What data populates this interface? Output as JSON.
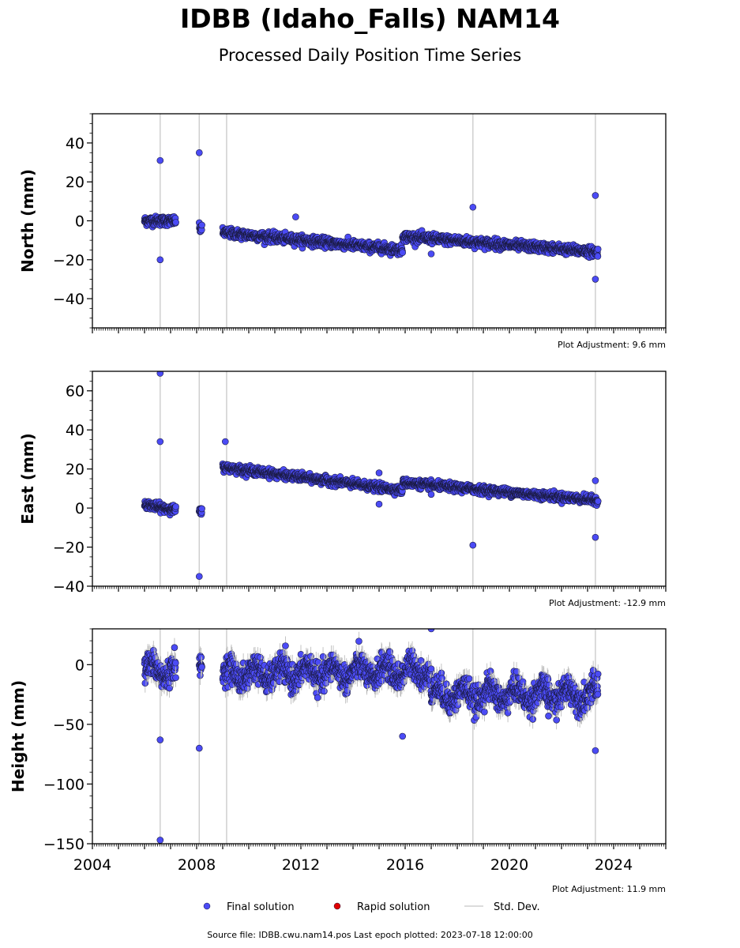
{
  "title": "IDBB (Idaho_Falls) NAM14",
  "subtitle": "Processed Daily Position Time Series",
  "footer": "Source file: IDBB.cwu.nam14.pos  Last epoch plotted: 2023-07-18 12:00:00",
  "legend": [
    {
      "label": "Final solution",
      "color": "#4b4bf5",
      "kind": "dot"
    },
    {
      "label": "Rapid solution",
      "color": "#e00000",
      "kind": "dot"
    },
    {
      "label": "Std. Dev.",
      "color": "#d0d0d0",
      "kind": "line"
    }
  ],
  "chart_data": {
    "type": "scatter",
    "xlim": [
      2004.0,
      2026.0
    ],
    "x_ticks": [
      "2004",
      "2008",
      "2012",
      "2016",
      "2020",
      "2024"
    ],
    "panels": [
      {
        "ylabel": "North (mm)",
        "ylim": [
          -55,
          55
        ],
        "y_ticks": [
          "40",
          "20",
          "0",
          "−20",
          "−40"
        ],
        "adjustment": "Plot Adjustment: 9.6 mm",
        "series": [
          {
            "x": [
              2006.0,
              2007.2
            ],
            "y": [
              0,
              0
            ]
          },
          {
            "x": [
              2008.1,
              2008.2
            ],
            "y": [
              -4,
              -4
            ]
          },
          {
            "x": [
              2009.0,
              2015.9
            ],
            "y": [
              -6,
              -15
            ]
          },
          {
            "x": [
              2015.9,
              2023.4
            ],
            "y": [
              -8,
              -16
            ]
          }
        ],
        "outliers": [
          {
            "x": 2006.6,
            "y": 31
          },
          {
            "x": 2006.6,
            "y": -20
          },
          {
            "x": 2008.1,
            "y": 35
          },
          {
            "x": 2011.8,
            "y": 2
          },
          {
            "x": 2017.0,
            "y": -17
          },
          {
            "x": 2018.6,
            "y": 7
          },
          {
            "x": 2023.3,
            "y": 13
          },
          {
            "x": 2023.3,
            "y": -30
          }
        ]
      },
      {
        "ylabel": "East (mm)",
        "ylim": [
          -40,
          70
        ],
        "y_ticks": [
          "60",
          "40",
          "20",
          "0",
          "−20",
          "−40"
        ],
        "adjustment": "Plot Adjustment: -12.9 mm",
        "series": [
          {
            "x": [
              2006.0,
              2007.2
            ],
            "y": [
              2,
              -1
            ]
          },
          {
            "x": [
              2008.1,
              2008.2
            ],
            "y": [
              -2,
              -2
            ]
          },
          {
            "x": [
              2009.0,
              2015.9
            ],
            "y": [
              21,
              9
            ]
          },
          {
            "x": [
              2015.9,
              2023.4
            ],
            "y": [
              13,
              4
            ]
          }
        ],
        "outliers": [
          {
            "x": 2006.6,
            "y": 69
          },
          {
            "x": 2006.6,
            "y": 34
          },
          {
            "x": 2008.1,
            "y": -35
          },
          {
            "x": 2009.1,
            "y": 34
          },
          {
            "x": 2015.0,
            "y": 18
          },
          {
            "x": 2015.0,
            "y": 2
          },
          {
            "x": 2017.0,
            "y": 7
          },
          {
            "x": 2018.6,
            "y": -19
          },
          {
            "x": 2023.3,
            "y": 14
          },
          {
            "x": 2023.3,
            "y": -15
          }
        ]
      },
      {
        "ylabel": "Height (mm)",
        "ylim": [
          -150,
          30
        ],
        "y_ticks": [
          "0",
          "−50",
          "−100",
          "−150"
        ],
        "adjustment": "Plot Adjustment: 11.9 mm",
        "series": [
          {
            "x": [
              2006.0,
              2007.2
            ],
            "y": [
              -5,
              -5
            ]
          },
          {
            "x": [
              2008.1,
              2008.2
            ],
            "y": [
              -8,
              -8
            ]
          },
          {
            "x": [
              2009.0,
              2017.0
            ],
            "y": [
              -8,
              -5
            ]
          },
          {
            "x": [
              2017.0,
              2023.4
            ],
            "y": [
              -25,
              -25
            ]
          }
        ],
        "outliers": [
          {
            "x": 2006.6,
            "y": -63
          },
          {
            "x": 2006.6,
            "y": -147
          },
          {
            "x": 2008.1,
            "y": -70
          },
          {
            "x": 2015.9,
            "y": -60
          },
          {
            "x": 2017.0,
            "y": 30
          },
          {
            "x": 2021.5,
            "y": -43
          },
          {
            "x": 2023.3,
            "y": -72
          }
        ]
      }
    ]
  }
}
